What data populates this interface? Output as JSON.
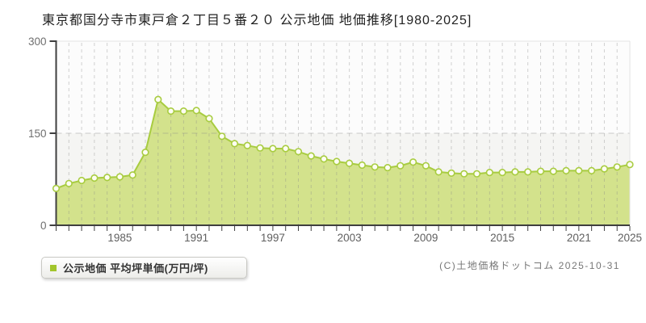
{
  "title": "東京都国分寺市東戸倉２丁目５番２０ 公示地価 地価推移[1980-2025]",
  "legend": {
    "label": "公示地価 平均坪単価(万円/坪)",
    "marker_color": "#a2c52c"
  },
  "footer": {
    "copyright": "(C)土地価格ドットコム 2025-10-31"
  },
  "chart_data": {
    "type": "area",
    "title": "東京都国分寺市東戸倉２丁目５番２０ 公示地価 地価推移[1980-2025]",
    "ylabel": "平均坪単価(万円/坪)",
    "ylim": [
      0,
      300
    ],
    "yticks": [
      0,
      150,
      300
    ],
    "xtick_labels": [
      1985,
      1991,
      1997,
      2003,
      2009,
      2015,
      2021,
      2025
    ],
    "grid": true,
    "legend_position": "bottom-left",
    "x": [
      1980,
      1981,
      1982,
      1983,
      1984,
      1985,
      1986,
      1987,
      1988,
      1989,
      1990,
      1991,
      1992,
      1993,
      1994,
      1995,
      1996,
      1997,
      1998,
      1999,
      2000,
      2001,
      2002,
      2003,
      2004,
      2005,
      2006,
      2007,
      2008,
      2009,
      2010,
      2011,
      2012,
      2013,
      2014,
      2015,
      2016,
      2017,
      2018,
      2019,
      2020,
      2021,
      2022,
      2023,
      2024,
      2025
    ],
    "series": [
      {
        "name": "公示地価 平均坪単価(万円/坪)",
        "values": [
          60,
          68,
          73,
          77,
          78,
          79,
          82,
          119,
          205,
          186,
          186,
          187,
          174,
          145,
          133,
          130,
          126,
          125,
          125,
          120,
          113,
          108,
          104,
          101,
          98,
          95,
          94,
          97,
          103,
          97,
          87,
          85,
          84,
          84,
          86,
          86,
          87,
          87,
          88,
          88,
          89,
          89,
          89,
          92,
          95,
          99
        ]
      }
    ],
    "colors": {
      "line": "#a8cc40",
      "fill": "#d3e28c",
      "marker_fill": "#fdfdf2",
      "grid": "#888888",
      "axis": "#3f3f3f",
      "border": "#e3e3e3",
      "plot_bg_upper": "#fcfcfc",
      "plot_bg_lower": "#f5f5f3",
      "ytick_text": "#6f6f6f",
      "xtick_text": "#5f5f5f"
    }
  }
}
